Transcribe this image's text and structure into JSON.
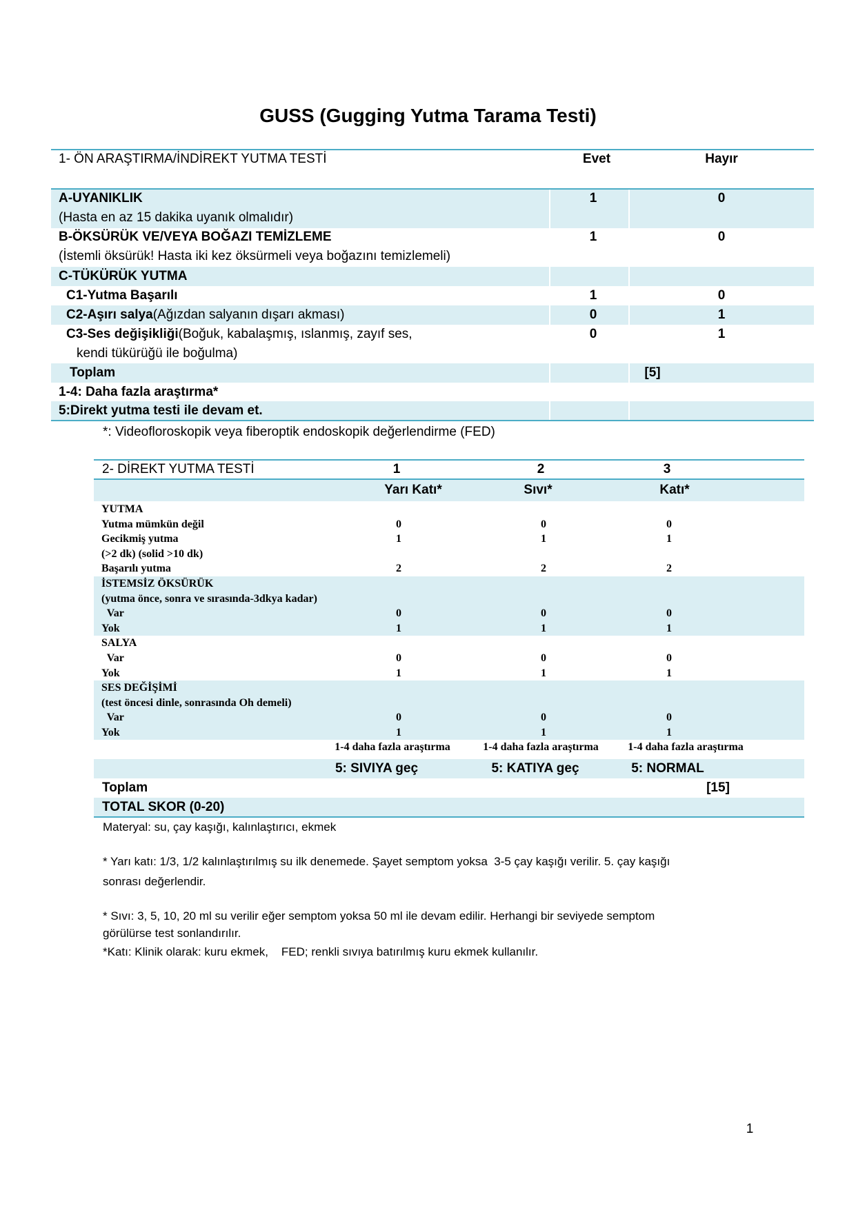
{
  "title": "GUSS (Gugging Yutma Tarama Testi)",
  "section1": {
    "header": "1- ÖN ARAŞTIRMA/İNDİREKT YUTMA TESTİ",
    "col_yes": "Evet",
    "col_no": "Hayır",
    "rows": [
      {
        "label": "A-UYANIKLIK",
        "sub": " (Hasta en az 15 dakika uyanık olmalıdır)",
        "yes": "1",
        "no": "0"
      },
      {
        "label": "B-ÖKSÜRÜK VE/VEYA BOĞAZI TEMİZLEME",
        "sub": "(İstemli öksürük! Hasta iki kez öksürmeli veya boğazını temizlemeli)",
        "yes": "1",
        "no": "0"
      },
      {
        "label": "C-TÜKÜRÜK YUTMA",
        "sub": "",
        "yes": "",
        "no": ""
      },
      {
        "label": "C1-Yutma Başarılı",
        "sub": "",
        "yes": "1",
        "no": "0"
      },
      {
        "label": "C2-Aşırı salya",
        "rest": "(Ağızdan salyanın dışarı akması)",
        "sub": "",
        "yes": "0",
        "no": "1"
      },
      {
        "label": "C3-Ses değişikliği",
        "rest": "(Boğuk, kabalaşmış, ıslanmış, zayıf ses,",
        "sub": "kendi tükürüğü ile  boğulma)",
        "yes": "0",
        "no": "1"
      }
    ],
    "total_label": "Toplam",
    "total_value": "[5]",
    "result_1_4": "1-4: Daha fazla araştırma*",
    "result_5": "5:Direkt yutma testi ile devam et.",
    "footnote": "*: Videofloroskopik veya fiberoptik endoskopik değerlendirme (FED)"
  },
  "section2": {
    "header": "2- DİREKT YUTMA TESTİ",
    "col_numbers": [
      "1",
      "2",
      "3"
    ],
    "col_names": [
      "Yarı Katı*",
      "Sıvı*",
      "Katı*"
    ],
    "rows": [
      {
        "label": "YUTMA",
        "values": [
          "",
          "",
          ""
        ]
      },
      {
        "label": "Yutma mümkün değil",
        "values": [
          "0",
          "0",
          "0"
        ]
      },
      {
        "label": "Gecikmiş yutma",
        "values": [
          "1",
          "1",
          "1"
        ]
      },
      {
        "label": "(>2 dk) (solid >10 dk)",
        "values": [
          "",
          "",
          ""
        ]
      },
      {
        "label": "Başarılı yutma",
        "values": [
          "2",
          "2",
          "2"
        ]
      },
      {
        "label": "İSTEMSİZ ÖKSÜRÜK",
        "values": [
          "",
          "",
          ""
        ]
      },
      {
        "label": "(yutma önce, sonra ve sırasında-3dkya kadar)",
        "values": [
          "",
          "",
          ""
        ]
      },
      {
        "label": "  Var",
        "values": [
          "0",
          "0",
          "0"
        ]
      },
      {
        "label": "Yok",
        "values": [
          "1",
          "1",
          "1"
        ]
      },
      {
        "label": "SALYA",
        "values": [
          "",
          "",
          ""
        ]
      },
      {
        "label": "  Var",
        "values": [
          "0",
          "0",
          "0"
        ]
      },
      {
        "label": "Yok",
        "values": [
          "1",
          "1",
          "1"
        ]
      },
      {
        "label": "SES DEĞİŞİMİ",
        "values": [
          "",
          "",
          ""
        ]
      },
      {
        "label": "(test öncesi dinle, sonrasında Oh demeli)",
        "values": [
          "",
          "",
          ""
        ]
      },
      {
        "label": "  Var",
        "values": [
          "0",
          "0",
          "0"
        ]
      },
      {
        "label": "Yok",
        "values": [
          "1",
          "1",
          "1"
        ]
      }
    ],
    "more_tests": [
      "1-4 daha fazla araştırma",
      "1-4 daha fazla araştırma",
      "1-4 daha fazla araştırma"
    ],
    "next_steps": [
      "5: SIVIYA geç",
      "5: KATIYA geç",
      "5: NORMAL"
    ],
    "total_label": "Toplam",
    "total_value": "[15]",
    "total_score_label": "TOTAL SKOR (0-20)"
  },
  "notes": [
    "Materyal: su, çay kaşığı, kalınlaştırıcı, ekmek",
    "* Yarı katı: 1/3, 1/2 kalınlaştırılmış su ilk denemede. Şayet semptom yoksa  3-5 çay kaşığı verilir. 5. çay kaşığı",
    "sonrası değerlendir.",
    "* Sıvı: 3, 5, 10, 20 ml su verilir eğer semptom yoksa 50 ml ile devam edilir. Herhangi bir seviyede semptom",
    "görülürse test sonlandırılır.",
    "*Katı: Klinik olarak: kuru ekmek,    FED; renkli sıvıya batırılmış kuru ekmek kullanılır."
  ],
  "page_number": "1",
  "colors": {
    "band": "#daeef3",
    "rule": "#4bacc6"
  }
}
